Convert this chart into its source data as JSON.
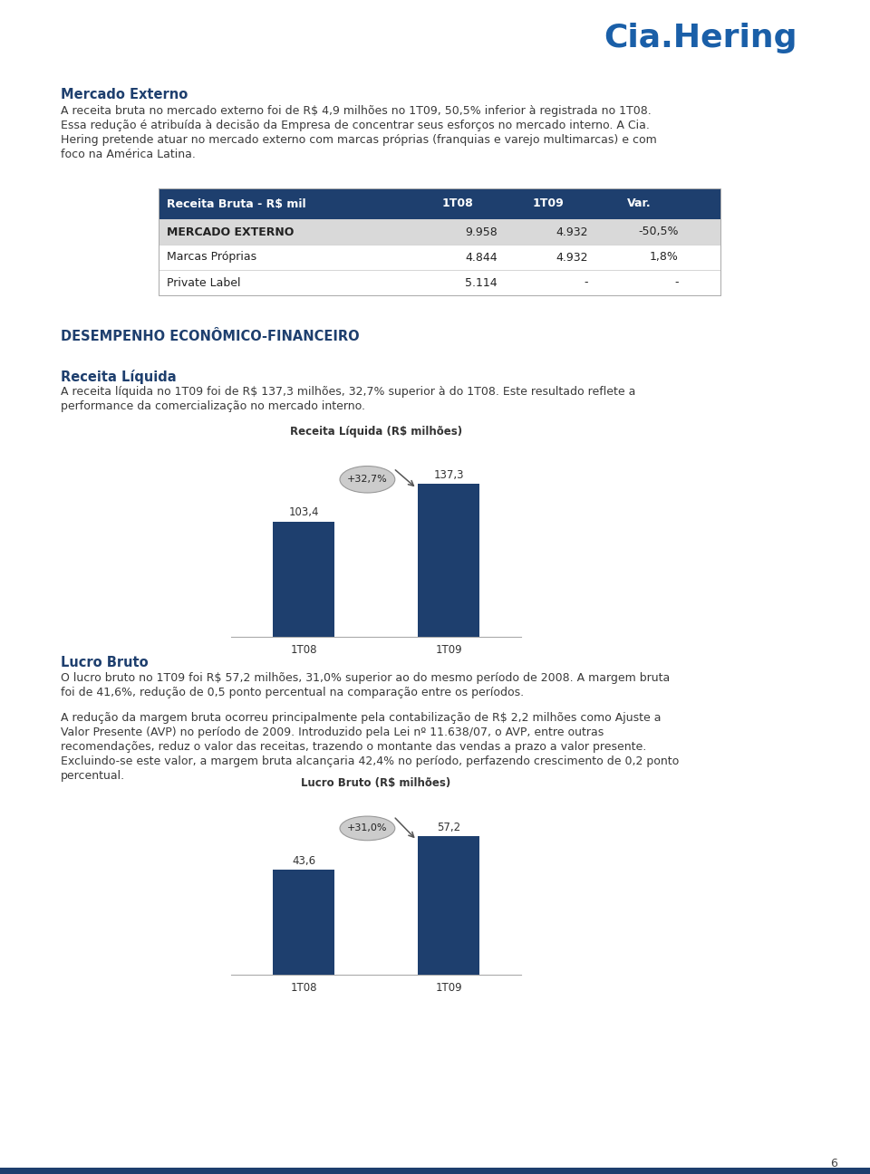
{
  "page_bg": "#ffffff",
  "logo_text": "Cia.Hering",
  "logo_color": "#1a5fa8",
  "section1_heading": "Mercado Externo",
  "section1_para_lines": [
    "A receita bruta no mercado externo foi de R$ 4,9 milhões no 1T09, 50,5% inferior à registrada no 1T08.",
    "Essa redução é atribuída à decisão da Empresa de concentrar seus esforços no mercado interno. A Cia.",
    "Hering pretende atuar no mercado externo com marcas próprias (franquias e varejo multimarcas) e com",
    "foco na América Latina."
  ],
  "table_header": [
    "Receita Bruta - R$ mil",
    "1T08",
    "1T09",
    "Var."
  ],
  "table_header_bg": "#1e3f6e",
  "table_header_fg": "#ffffff",
  "table_row1": [
    "MERCADO EXTERNO",
    "9.958",
    "4.932",
    "-50,5%"
  ],
  "table_row2": [
    "Marcas Próprias",
    "4.844",
    "4.932",
    "1,8%"
  ],
  "table_row3": [
    "Private Label",
    "5.114",
    "-",
    "-"
  ],
  "table_row1_bg": "#d9d9d9",
  "table_row2_bg": "#ffffff",
  "table_row3_bg": "#ffffff",
  "section2_heading": "DESEMPENHO ECONÔMICO-FINANCEIRO",
  "section3_heading": "Receita Líquida",
  "section3_para_lines": [
    "A receita líquida no 1T09 foi de R$ 137,3 milhões, 32,7% superior à do 1T08. Este resultado reflete a",
    "performance da comercialização no mercado interno."
  ],
  "chart1_title": "Receita Líquida (R$ milhões)",
  "chart1_bars": [
    103.4,
    137.3
  ],
  "chart1_labels": [
    "1T08",
    "1T09"
  ],
  "chart1_bar_color": "#1e3f6e",
  "chart1_annotation": "+32,7%",
  "chart1_values": [
    "103,4",
    "137,3"
  ],
  "section4_heading": "Lucro Bruto",
  "section4_para1_lines": [
    "O lucro bruto no 1T09 foi R$ 57,2 milhões, 31,0% superior ao do mesmo período de 2008. A margem bruta",
    "foi de 41,6%, redução de 0,5 ponto percentual na comparação entre os períodos."
  ],
  "section4_para2_lines": [
    "A redução da margem bruta ocorreu principalmente pela contabilização de R$ 2,2 milhões como Ajuste a",
    "Valor Presente (AVP) no período de 2009. Introduzido pela Lei nº 11.638/07, o AVP, entre outras",
    "recomendações, reduz o valor das receitas, trazendo o montante das vendas a prazo a valor presente.",
    "Excluindo-se este valor, a margem bruta alcançaria 42,4% no período, perfazendo crescimento de 0,2 ponto",
    "percentual."
  ],
  "chart2_title": "Lucro Bruto (R$ milhões)",
  "chart2_bars": [
    43.6,
    57.2
  ],
  "chart2_labels": [
    "1T08",
    "1T09"
  ],
  "chart2_bar_color": "#1e3f6e",
  "chart2_annotation": "+31,0%",
  "chart2_values": [
    "43,6",
    "57,2"
  ],
  "page_number": "6",
  "bottom_bar_color": "#1e3f6e",
  "text_color": "#1e3f6e",
  "body_text_color": "#3a3a3a"
}
